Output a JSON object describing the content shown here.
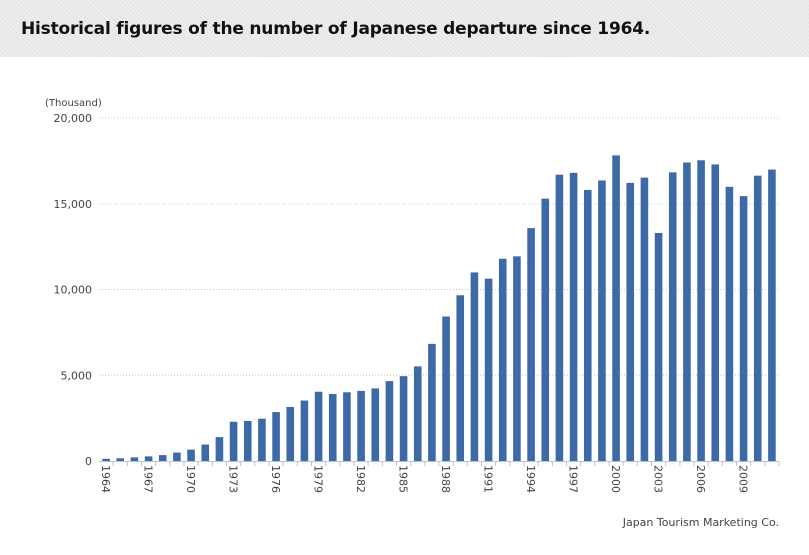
{
  "header": {
    "title": "Historical figures of the number of Japanese departure since 1964."
  },
  "footer": {
    "credit": "Japan Tourism Marketing Co."
  },
  "chart_data": {
    "type": "bar",
    "title": "Historical figures of the number of Japanese departure since 1964.",
    "ylabel": "(Thousand)",
    "xlabel": "",
    "ylim": [
      0,
      20000
    ],
    "yticks": [
      "0",
      "5,000",
      "10,000",
      "15,000",
      "20,000"
    ],
    "grid": true,
    "bar_color": "#3d6aa6",
    "categories": [
      1964,
      1965,
      1966,
      1967,
      1968,
      1969,
      1970,
      1971,
      1972,
      1973,
      1974,
      1975,
      1976,
      1977,
      1978,
      1979,
      1980,
      1981,
      1982,
      1983,
      1984,
      1985,
      1986,
      1987,
      1988,
      1989,
      1990,
      1991,
      1992,
      1993,
      1994,
      1995,
      1996,
      1997,
      1998,
      1999,
      2000,
      2001,
      2002,
      2003,
      2004,
      2005,
      2006,
      2007,
      2008,
      2009,
      2010,
      2011
    ],
    "xtick_labels": [
      "1964",
      "1967",
      "1970",
      "1973",
      "1976",
      "1979",
      "1982",
      "1985",
      "1988",
      "1991",
      "1994",
      "1997",
      "2000",
      "2003",
      "2006",
      "2009"
    ],
    "values": [
      128,
      159,
      212,
      268,
      344,
      493,
      663,
      961,
      1392,
      2289,
      2336,
      2466,
      2853,
      3151,
      3525,
      4039,
      3909,
      4006,
      4086,
      4233,
      4659,
      4948,
      5516,
      6829,
      8427,
      9663,
      10997,
      10634,
      11791,
      11934,
      13579,
      15298,
      16695,
      16803,
      15806,
      16358,
      17819,
      16216,
      16523,
      13296,
      16831,
      17404,
      17535,
      17295,
      15987,
      15446,
      16637,
      16994
    ]
  }
}
